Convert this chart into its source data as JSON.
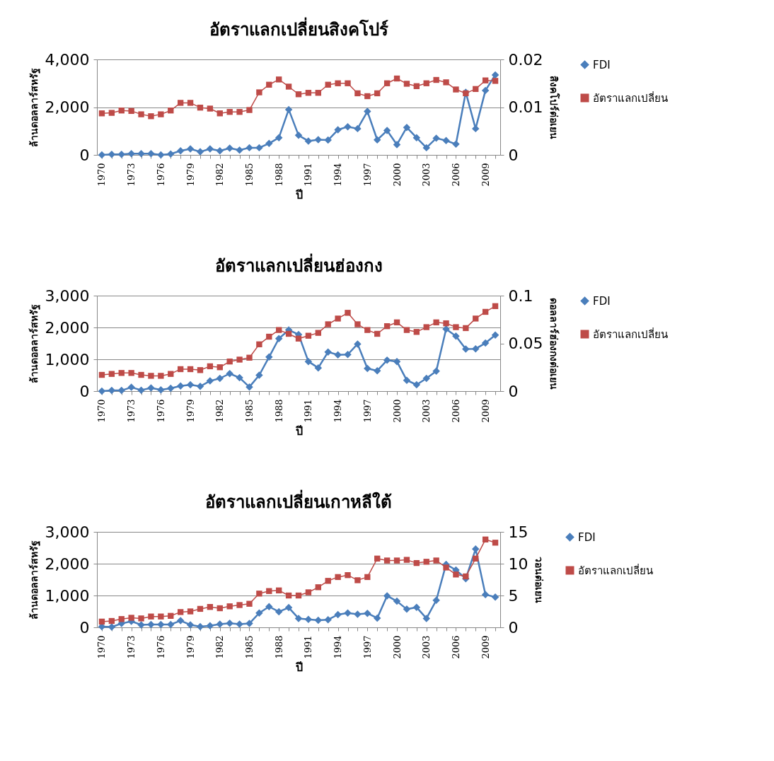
{
  "chart_data": [
    {
      "type": "line",
      "title": "อัตราแลกเปลี่ยนสิงคโปร์",
      "xlabel": "ปี",
      "ylabel": "ล้านดอลลาร์สหรัฐ",
      "y2label": "สิงคโปร์ต่อเยน",
      "categories": [
        "1970",
        null,
        null,
        "1973",
        null,
        null,
        "1976",
        null,
        null,
        "1979",
        null,
        null,
        "1982",
        null,
        null,
        "1985",
        null,
        null,
        "1988",
        null,
        null,
        "1991",
        null,
        null,
        "1994",
        null,
        null,
        "1997",
        null,
        null,
        "2000",
        null,
        null,
        "2003",
        null,
        null,
        "2006",
        null,
        null,
        "2009",
        null
      ],
      "series": [
        {
          "name": "FDI",
          "color": "#4a7ebb",
          "marker": "diamond",
          "values": [
            0,
            20,
            20,
            50,
            50,
            50,
            0,
            40,
            170,
            250,
            130,
            250,
            170,
            280,
            200,
            300,
            300,
            480,
            720,
            1900,
            820,
            580,
            640,
            620,
            1050,
            1180,
            1100,
            1820,
            630,
            1020,
            430,
            1150,
            720,
            300,
            700,
            600,
            450,
            2620,
            1100,
            2700,
            3350
          ]
        },
        {
          "name": "อัตราแลกเปลี่ยน",
          "color": "#be4b48",
          "marker": "square",
          "axis": "y2",
          "values": [
            0.0087,
            0.0088,
            0.0093,
            0.0092,
            0.0085,
            0.0081,
            0.0085,
            0.0093,
            0.0109,
            0.0109,
            0.0099,
            0.0097,
            0.0087,
            0.009,
            0.009,
            0.0094,
            0.0131,
            0.0147,
            0.0158,
            0.0143,
            0.0127,
            0.013,
            0.013,
            0.0147,
            0.015,
            0.015,
            0.0129,
            0.0123,
            0.0129,
            0.015,
            0.016,
            0.0149,
            0.0144,
            0.015,
            0.0157,
            0.0152,
            0.0137,
            0.0129,
            0.0138,
            0.0156,
            0.0155
          ]
        }
      ],
      "ylim": [
        0,
        4000
      ],
      "yticks": [
        {
          "value": 0,
          "label": "0"
        },
        {
          "value": 2000,
          "label": "2,000"
        },
        {
          "value": 4000,
          "label": "4,000"
        }
      ],
      "y2lim": [
        0,
        0.02
      ],
      "y2ticks": [
        0,
        0.01,
        0.02
      ],
      "grid": "y",
      "legend": "right"
    },
    {
      "type": "line",
      "title": "อัตราแลกเปลี่ยนฮ่องกง",
      "xlabel": "ปี",
      "ylabel": "ล้านดอลลาร์สหรัฐ",
      "y2label": "ดอลลาร์ฮ่องกงต่อเยน",
      "categories": [
        "1970",
        null,
        null,
        "1973",
        null,
        null,
        "1976",
        null,
        null,
        "1979",
        null,
        null,
        "1982",
        null,
        null,
        "1985",
        null,
        null,
        "1988",
        null,
        null,
        "1991",
        null,
        null,
        "1994",
        null,
        null,
        "1997",
        null,
        null,
        "2000",
        null,
        null,
        "2003",
        null,
        null,
        "2006",
        null,
        null,
        "2009",
        null
      ],
      "series": [
        {
          "name": "FDI",
          "color": "#4a7ebb",
          "marker": "diamond",
          "values": [
            0,
            20,
            20,
            120,
            30,
            100,
            40,
            90,
            160,
            200,
            150,
            320,
            400,
            550,
            420,
            130,
            500,
            1070,
            1650,
            1920,
            1780,
            930,
            730,
            1230,
            1140,
            1150,
            1480,
            710,
            640,
            970,
            930,
            340,
            200,
            400,
            630,
            1950,
            1730,
            1320,
            1330,
            1510,
            1760
          ]
        },
        {
          "name": "อัตราแลกเปลี่ยน",
          "color": "#be4b48",
          "marker": "square",
          "axis": "y2",
          "values": [
            0.017,
            0.018,
            0.019,
            0.019,
            0.017,
            0.016,
            0.016,
            0.018,
            0.023,
            0.023,
            0.022,
            0.026,
            0.025,
            0.031,
            0.033,
            0.035,
            0.049,
            0.057,
            0.064,
            0.06,
            0.055,
            0.058,
            0.061,
            0.07,
            0.076,
            0.082,
            0.07,
            0.064,
            0.06,
            0.068,
            0.072,
            0.064,
            0.062,
            0.067,
            0.072,
            0.071,
            0.067,
            0.066,
            0.076,
            0.083,
            0.089
          ]
        }
      ],
      "ylim": [
        0,
        3000
      ],
      "yticks": [
        {
          "value": 0,
          "label": "0"
        },
        {
          "value": 1000,
          "label": "1,000"
        },
        {
          "value": 2000,
          "label": "2,000"
        },
        {
          "value": 3000,
          "label": "3,000"
        }
      ],
      "y2lim": [
        0,
        0.1
      ],
      "y2ticks": [
        0,
        0.05,
        0.1
      ],
      "grid": "y",
      "legend": "right"
    },
    {
      "type": "line",
      "title": "อัตราแลกเปลี่ยนเกาหลีใต้",
      "xlabel": "ปี",
      "ylabel": "ล้านดอลลาร์สหรัฐ",
      "y2label": "วอนต่อเยน",
      "categories": [
        "1970",
        null,
        null,
        "1973",
        null,
        null,
        "1976",
        null,
        null,
        "1979",
        null,
        null,
        "1982",
        null,
        null,
        "1985",
        null,
        null,
        "1988",
        null,
        null,
        "1991",
        null,
        null,
        "1994",
        null,
        null,
        "1997",
        null,
        null,
        "2000",
        null,
        null,
        "2003",
        null,
        null,
        "2006",
        null,
        null,
        "2009",
        null
      ],
      "series": [
        {
          "name": "FDI",
          "color": "#4a7ebb",
          "marker": "diamond",
          "values": [
            20,
            10,
            120,
            190,
            80,
            90,
            90,
            90,
            210,
            80,
            20,
            50,
            100,
            130,
            100,
            120,
            450,
            650,
            490,
            620,
            280,
            250,
            220,
            240,
            400,
            450,
            410,
            440,
            290,
            990,
            820,
            570,
            630,
            280,
            850,
            1980,
            1800,
            1530,
            2460,
            1030,
            950
          ]
        },
        {
          "name": "อัตราแลกเปลี่ยน",
          "color": "#be4b48",
          "marker": "square",
          "axis": "y2",
          "values": [
            0.9,
            1.0,
            1.3,
            1.5,
            1.4,
            1.7,
            1.7,
            1.8,
            2.4,
            2.5,
            2.9,
            3.2,
            3.0,
            3.3,
            3.5,
            3.7,
            5.3,
            5.7,
            5.8,
            5.0,
            5.0,
            5.5,
            6.3,
            7.3,
            7.9,
            8.2,
            7.4,
            7.9,
            10.8,
            10.5,
            10.5,
            10.6,
            10.1,
            10.3,
            10.5,
            9.4,
            8.3,
            8.0,
            10.8,
            13.8,
            13.3
          ]
        }
      ],
      "ylim": [
        0,
        3000
      ],
      "yticks": [
        {
          "value": 0,
          "label": "0"
        },
        {
          "value": 1000,
          "label": "1,000"
        },
        {
          "value": 2000,
          "label": "2,000"
        },
        {
          "value": 3000,
          "label": "3,000"
        }
      ],
      "y2lim": [
        0,
        15
      ],
      "y2ticks": [
        0,
        5,
        10,
        15
      ],
      "grid": "y",
      "legend": "right"
    }
  ]
}
